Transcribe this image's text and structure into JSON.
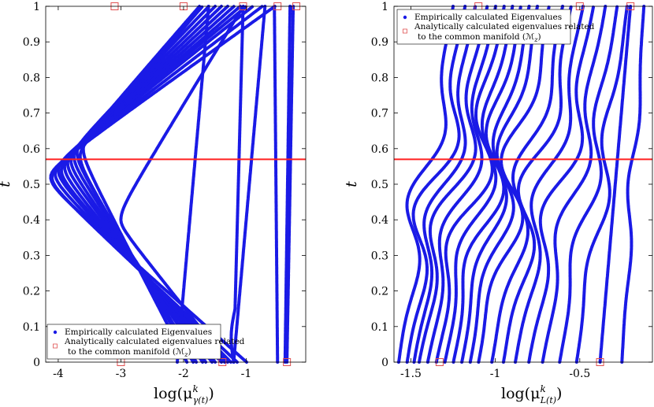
{
  "chart_data": [
    {
      "type": "line",
      "ylabel": "t",
      "xlabel_text": "log(μ",
      "xlabel_sup": "k",
      "xlabel_sub": "γ(t)",
      "xlim": [
        -4.2,
        -0.05
      ],
      "ylim": [
        0,
        1
      ],
      "xticks": [
        -4,
        -3,
        -2,
        -1
      ],
      "xtick_labels": [
        "-4",
        "-3",
        "-2",
        "-1"
      ],
      "yticks": [
        0,
        0.1,
        0.2,
        0.3,
        0.4,
        0.5,
        0.6,
        0.7,
        0.8,
        0.9,
        1
      ],
      "ytick_labels": [
        "0",
        "0.1",
        "0.2",
        "0.3",
        "0.4",
        "0.5",
        "0.6",
        "0.7",
        "0.8",
        "0.9",
        "1"
      ],
      "hline": 0.57,
      "legend": {
        "position": "bottom-left",
        "entries": [
          "Empirically calculated Eigenvalues",
          "Analytically calculated eigenvalues related",
          "to the common manifold (ℳ"
        ],
        "sub": "z",
        "tail": ")"
      },
      "series": [
        {
          "kind": "V",
          "x0": -1.0,
          "x1": -0.55,
          "xmin": -4.12,
          "tmin": 0.52
        },
        {
          "kind": "V",
          "x0": -1.15,
          "x1": -0.75,
          "xmin": -4.1,
          "tmin": 0.52
        },
        {
          "kind": "V",
          "x0": -1.25,
          "x1": -0.9,
          "xmin": -4.05,
          "tmin": 0.53
        },
        {
          "kind": "V",
          "x0": -1.35,
          "x1": -1.0,
          "xmin": -4.0,
          "tmin": 0.54
        },
        {
          "kind": "V",
          "x0": -1.4,
          "x1": -1.1,
          "xmin": -3.95,
          "tmin": 0.54
        },
        {
          "kind": "V",
          "x0": -1.5,
          "x1": -1.2,
          "xmin": -3.9,
          "tmin": 0.55
        },
        {
          "kind": "V",
          "x0": -1.55,
          "x1": -1.3,
          "xmin": -3.85,
          "tmin": 0.56
        },
        {
          "kind": "V",
          "x0": -1.65,
          "x1": -1.4,
          "xmin": -3.8,
          "tmin": 0.57
        },
        {
          "kind": "V",
          "x0": -1.7,
          "x1": -1.5,
          "xmin": -3.75,
          "tmin": 0.58
        },
        {
          "kind": "V",
          "x0": -1.8,
          "x1": -1.6,
          "xmin": -3.7,
          "tmin": 0.59
        },
        {
          "kind": "V",
          "x0": -1.85,
          "x1": -1.7,
          "xmin": -3.65,
          "tmin": 0.58
        },
        {
          "kind": "V",
          "x0": -1.95,
          "x1": -1.75,
          "xmin": -3.6,
          "tmin": 0.6
        },
        {
          "kind": "V",
          "x0": -1.3,
          "x1": -1.05,
          "xmin": -3.0,
          "tmin": 0.4
        },
        {
          "kind": "S",
          "x0": -1.2,
          "x1": -1.05,
          "xmin": -1.3
        },
        {
          "kind": "S",
          "x0": -0.5,
          "x1": -0.55,
          "xmin": -0.5
        },
        {
          "kind": "S",
          "x0": -0.35,
          "x1": -0.25,
          "xmin": -0.35
        },
        {
          "kind": "L",
          "x0": -2.1,
          "x1": -1.6
        },
        {
          "kind": "L",
          "x0": -1.2,
          "x1": -0.7
        },
        {
          "kind": "L",
          "x0": -0.38,
          "x1": -0.3
        }
      ],
      "markers": [
        {
          "x": -3.0,
          "y": 0
        },
        {
          "x": -1.38,
          "y": 0
        },
        {
          "x": -0.35,
          "y": 0
        },
        {
          "x": -3.1,
          "y": 1
        },
        {
          "x": -2.0,
          "y": 1
        },
        {
          "x": -1.05,
          "y": 1
        },
        {
          "x": -0.5,
          "y": 1
        },
        {
          "x": -0.2,
          "y": 1
        }
      ]
    },
    {
      "type": "line",
      "ylabel": "t",
      "xlabel_text": "log(μ",
      "xlabel_sup": "k",
      "xlabel_sub": "L(t)",
      "xlim": [
        -1.6,
        -0.07
      ],
      "ylim": [
        0,
        1
      ],
      "xticks": [
        -1.5,
        -1,
        -0.5
      ],
      "xtick_labels": [
        "-1.5",
        "-1",
        "-0.5"
      ],
      "yticks": [
        0,
        0.1,
        0.2,
        0.3,
        0.4,
        0.5,
        0.6,
        0.7,
        0.8,
        0.9,
        1
      ],
      "ytick_labels": [
        "0",
        "0.1",
        "0.2",
        "0.3",
        "0.4",
        "0.5",
        "0.6",
        "0.7",
        "0.8",
        "0.9",
        "1"
      ],
      "hline": 0.57,
      "legend": {
        "position": "top-left",
        "entries": [
          "Empirically calculated Eigenvalues",
          "Analytically calculated eigenvalues related",
          "to the common manifold (ℳ"
        ],
        "sub": "z",
        "tail": ")"
      },
      "series": [
        {
          "x0": -1.57,
          "x1": -1.25,
          "w": 0.1
        },
        {
          "x0": -1.52,
          "x1": -1.18,
          "w": 0.12
        },
        {
          "x0": -1.48,
          "x1": -1.12,
          "w": 0.1
        },
        {
          "x0": -1.45,
          "x1": -1.05,
          "w": 0.11
        },
        {
          "x0": -1.4,
          "x1": -1.0,
          "w": 0.1
        },
        {
          "x0": -1.35,
          "x1": -0.95,
          "w": 0.12
        },
        {
          "x0": -1.3,
          "x1": -0.9,
          "w": 0.1
        },
        {
          "x0": -1.25,
          "x1": -0.85,
          "w": 0.11
        },
        {
          "x0": -1.2,
          "x1": -0.8,
          "w": 0.09
        },
        {
          "x0": -1.15,
          "x1": -0.75,
          "w": 0.1
        },
        {
          "x0": -1.1,
          "x1": -0.68,
          "w": 0.12
        },
        {
          "x0": -1.02,
          "x1": -0.6,
          "w": 0.1
        },
        {
          "x0": -0.95,
          "x1": -0.55,
          "w": 0.11
        },
        {
          "x0": -0.88,
          "x1": -0.48,
          "w": 0.09
        },
        {
          "x0": -0.8,
          "x1": -0.42,
          "w": 0.1
        },
        {
          "x0": -0.72,
          "x1": -0.35,
          "w": 0.08
        },
        {
          "x0": -0.62,
          "x1": -0.28,
          "w": 0.07
        },
        {
          "x0": -0.52,
          "x1": -0.22,
          "w": 0.06
        },
        {
          "x0": -0.38,
          "x1": -0.2,
          "w": 0.0
        },
        {
          "x0": -0.25,
          "x1": -0.12,
          "w": 0.03
        }
      ],
      "markers": [
        {
          "x": -1.33,
          "y": 0
        },
        {
          "x": -0.38,
          "y": 0
        },
        {
          "x": -1.1,
          "y": 1
        },
        {
          "x": -0.5,
          "y": 1
        },
        {
          "x": -0.2,
          "y": 1
        }
      ]
    }
  ],
  "colors": {
    "series": "#1a1ae6",
    "hline": "#ff2020",
    "marker": "#e05050"
  }
}
